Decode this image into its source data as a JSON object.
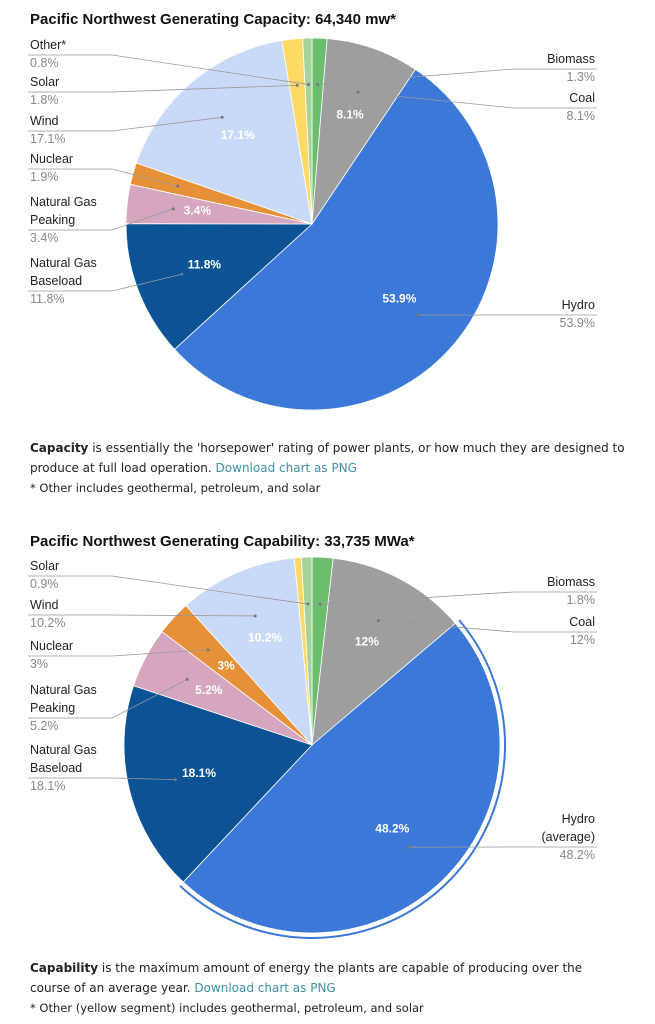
{
  "chart_data": [
    {
      "type": "pie",
      "title": "Pacific Northwest Generating Capacity: 64,340 mw*",
      "categories": [
        "Biomass",
        "Coal",
        "Hydro",
        "Natural Gas Baseload",
        "Natural Gas Peaking",
        "Nuclear",
        "Wind",
        "Solar",
        "Other*"
      ],
      "values": [
        1.3,
        8.1,
        53.9,
        11.8,
        3.4,
        1.9,
        17.1,
        1.8,
        0.8
      ],
      "value_labels": [
        "1.3%",
        "8.1%",
        "53.9%",
        "11.8%",
        "3.4%",
        "1.9%",
        "17.1%",
        "1.8%",
        "0.8%"
      ],
      "colors": [
        "#6dbd6f",
        "#9e9e9e",
        "#3c78d8",
        "#0b5394",
        "#d5a6bd",
        "#e69138",
        "#c9daf8",
        "#ffd966",
        "#a5d39a"
      ]
    },
    {
      "type": "pie",
      "title": "Pacific Northwest Generating Capability: 33,735 MWa*",
      "categories": [
        "Biomass",
        "Coal",
        "Hydro (average)",
        "Natural Gas Baseload",
        "Natural Gas Peaking",
        "Nuclear",
        "Wind",
        null,
        "Solar"
      ],
      "values": [
        1.8,
        12,
        48.2,
        18.1,
        5.2,
        3,
        10.2,
        0.6,
        0.9
      ],
      "value_labels": [
        "1.8%",
        "12%",
        "48.2%",
        "18.1%",
        "5.2%",
        "3%",
        "10.2%",
        null,
        "0.9%"
      ],
      "colors": [
        "#6dbd6f",
        "#9e9e9e",
        "#3c78d8",
        "#0b5394",
        "#d5a6bd",
        "#e69138",
        "#c9daf8",
        "#ffd966",
        "#a5d39a"
      ],
      "highlighted": 2
    }
  ],
  "captions": [
    {
      "term": "Capacity",
      "text": " is essentially the 'horsepower' rating of power plants, or how much they are designed to produce at full load operation. ",
      "link": "Download chart as PNG",
      "note": "* Other includes geothermal, petroleum, and solar"
    },
    {
      "term": "Capability",
      "text": " is the maximum amount of energy the plants are capable of producing over the course of an average year. ",
      "link": "Download chart as PNG",
      "note": "* Other (yellow segment) includes geothermal, petroleum, and solar"
    }
  ]
}
